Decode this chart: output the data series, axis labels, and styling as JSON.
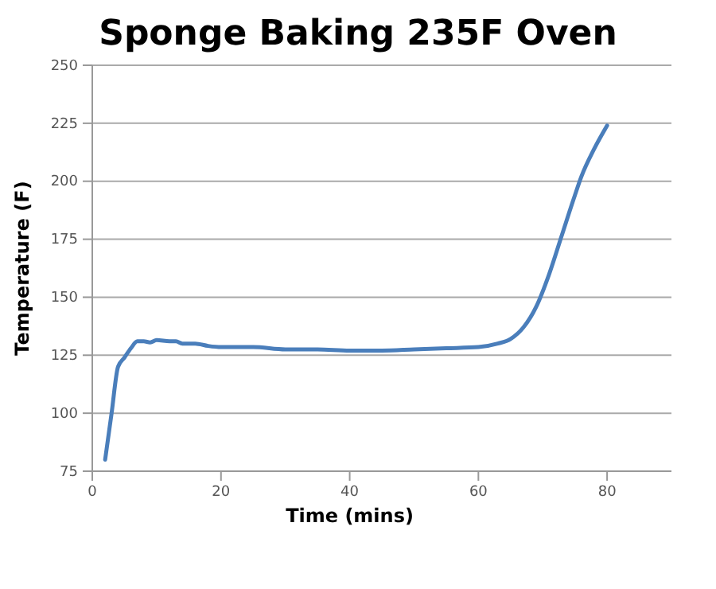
{
  "chart_data": {
    "type": "line",
    "title": "Sponge Baking 235F Oven",
    "xlabel": "Time (mins)",
    "ylabel": "Temperature (F)",
    "x": [
      2,
      3,
      4,
      5,
      6,
      7,
      8,
      9,
      10,
      12,
      13,
      14,
      16,
      18,
      20,
      25,
      30,
      35,
      40,
      45,
      50,
      55,
      60,
      63,
      65,
      67,
      69,
      71,
      73,
      75,
      76,
      78,
      80
    ],
    "series": [
      {
        "color": "#4a7ebb",
        "values": [
          80,
          100,
          120,
          124,
          128,
          131,
          131,
          130.5,
          131.5,
          131,
          131,
          130,
          130,
          129,
          128.5,
          128.5,
          127.5,
          127.5,
          127,
          127,
          127.5,
          128,
          128.5,
          130,
          132,
          137,
          146,
          160,
          177,
          194,
          202,
          214,
          224
        ]
      }
    ],
    "xlim": [
      0,
      90
    ],
    "xticks": [
      0,
      20,
      40,
      60,
      80
    ],
    "ylim": [
      75,
      250
    ],
    "yticks": [
      75,
      100,
      125,
      150,
      175,
      200,
      225,
      250
    ],
    "grid": "y"
  }
}
